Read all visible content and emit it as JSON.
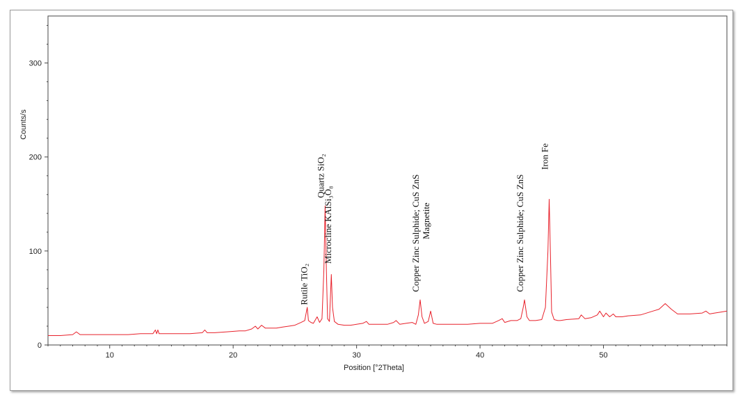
{
  "chart_data": {
    "type": "line",
    "title": "",
    "xlabel": "Position [°2Theta]",
    "ylabel": "Counts/s",
    "xlim": [
      5,
      60
    ],
    "ylim": [
      0,
      350
    ],
    "x_ticks": [
      10,
      20,
      30,
      40,
      50
    ],
    "y_ticks": [
      0,
      100,
      200,
      300
    ],
    "grid": false,
    "line_color": "#e8202a",
    "series": [
      {
        "x": [
          5.0,
          6.0,
          7.0,
          7.3,
          7.6,
          8.5,
          9.5,
          10.5,
          11.5,
          12.5,
          13.5,
          13.7,
          13.8,
          13.9,
          14.0,
          14.5,
          15.5,
          16.5,
          17.5,
          17.7,
          17.9,
          18.5,
          19.5,
          20.5,
          21.0,
          21.5,
          21.8,
          22.0,
          22.3,
          22.6,
          23.0,
          23.5,
          24.0,
          24.5,
          25.0,
          25.5,
          25.8,
          26.0,
          26.1,
          26.3,
          26.5,
          26.8,
          27.0,
          27.2,
          27.35,
          27.45,
          27.55,
          27.65,
          27.8,
          27.95,
          28.05,
          28.2,
          28.5,
          29.0,
          29.5,
          30.0,
          30.5,
          30.8,
          31.0,
          31.5,
          32.0,
          32.5,
          33.0,
          33.2,
          33.5,
          34.0,
          34.5,
          34.8,
          35.0,
          35.15,
          35.3,
          35.5,
          35.8,
          36.0,
          36.2,
          36.5,
          37.0,
          38.0,
          39.0,
          40.0,
          41.0,
          41.5,
          41.8,
          42.0,
          42.5,
          43.0,
          43.3,
          43.5,
          43.6,
          43.8,
          44.0,
          44.5,
          45.0,
          45.3,
          45.5,
          45.6,
          45.7,
          45.8,
          46.0,
          46.3,
          46.5,
          47.0,
          48.0,
          48.2,
          48.5,
          49.0,
          49.5,
          49.7,
          50.0,
          50.2,
          50.5,
          50.8,
          51.0,
          51.5,
          52.0,
          53.0,
          54.0,
          54.5,
          55.0,
          55.5,
          56.0,
          57.0,
          58.0,
          58.3,
          58.6,
          59.0,
          59.5,
          60.0
        ],
        "values": [
          10,
          10,
          11,
          14,
          11,
          11,
          11,
          11,
          11,
          12,
          12,
          16,
          12,
          16,
          12,
          12,
          12,
          12,
          13,
          16,
          13,
          13,
          14,
          15,
          15,
          17,
          20,
          17,
          21,
          18,
          18,
          18,
          19,
          20,
          21,
          24,
          26,
          40,
          26,
          24,
          23,
          30,
          24,
          28,
          80,
          148,
          80,
          28,
          25,
          75,
          40,
          25,
          22,
          21,
          21,
          22,
          23,
          25,
          22,
          22,
          22,
          22,
          24,
          26,
          22,
          23,
          24,
          22,
          32,
          48,
          30,
          23,
          25,
          36,
          23,
          22,
          22,
          22,
          22,
          23,
          23,
          26,
          28,
          24,
          26,
          26,
          28,
          40,
          48,
          30,
          26,
          26,
          27,
          40,
          100,
          155,
          100,
          35,
          27,
          26,
          26,
          27,
          28,
          32,
          28,
          29,
          32,
          36,
          30,
          34,
          30,
          33,
          30,
          30,
          31,
          32,
          36,
          38,
          44,
          38,
          33,
          33,
          34,
          36,
          33,
          34,
          35,
          36
        ]
      }
    ],
    "annotations": [
      {
        "text": "Rutile TiO₂",
        "x": 26.1,
        "y": 38
      },
      {
        "text": "Quartz SiO₂",
        "x": 27.45,
        "y": 152
      },
      {
        "text": "Microcline  KAlSi₃O₈",
        "x": 28.05,
        "y": 82
      },
      {
        "text": "Copper Zinc Sulphide; CuS  ZnS",
        "x": 35.15,
        "y": 52
      },
      {
        "text": "Magnetite",
        "x": 36.0,
        "y": 108
      },
      {
        "text": "Copper Zinc Sulphide; CuS  ZnS",
        "x": 43.6,
        "y": 52
      },
      {
        "text": "Iron Fe",
        "x": 45.6,
        "y": 182
      }
    ]
  }
}
